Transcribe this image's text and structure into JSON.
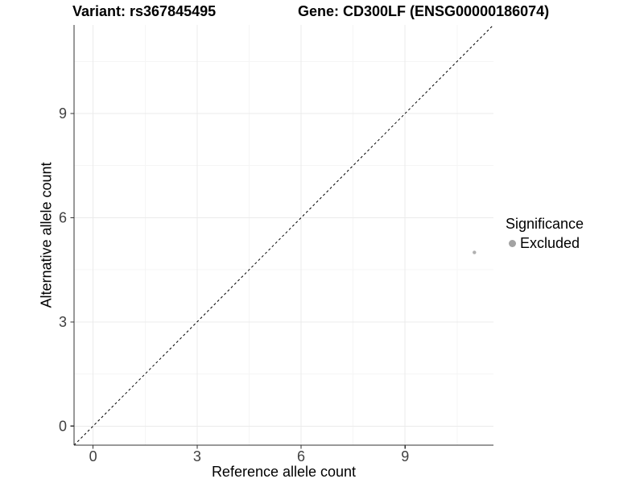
{
  "chart_data": {
    "type": "scatter",
    "title_left": "Variant: rs367845495",
    "title_right": "Gene: CD300LF (ENSG00000186074)",
    "xlabel": "Reference allele count",
    "ylabel": "Alternative allele count",
    "xlim": [
      -0.55,
      11.55
    ],
    "ylim": [
      -0.55,
      11.55
    ],
    "x_ticks": [
      0,
      3,
      6,
      9
    ],
    "y_ticks": [
      0,
      3,
      6,
      9
    ],
    "x_minor_gridlines": [
      1.5,
      4.5,
      7.5,
      10.5
    ],
    "y_minor_gridlines": [
      1.5,
      4.5,
      7.5,
      10.5
    ],
    "grid": "major+minor",
    "legend_position": "right",
    "series": [
      {
        "name": "Excluded",
        "color": "#b0b0b0",
        "points": [
          {
            "x": 11,
            "y": 5
          }
        ]
      }
    ],
    "reference_line": {
      "type": "identity",
      "slope": 1,
      "intercept": 0,
      "linetype": "dashed",
      "color": "#000000"
    },
    "legend": {
      "title": "Significance",
      "entries": [
        {
          "label": "Excluded",
          "color": "#a3a3a3"
        }
      ]
    }
  },
  "colors": {
    "background": "#ffffff",
    "axis_line": "#333333",
    "tick_mark": "#333333",
    "tick_label": "#404040",
    "grid_major": "#ebebeb",
    "grid_minor": "#f5f5f5",
    "title_text": "#000000"
  }
}
